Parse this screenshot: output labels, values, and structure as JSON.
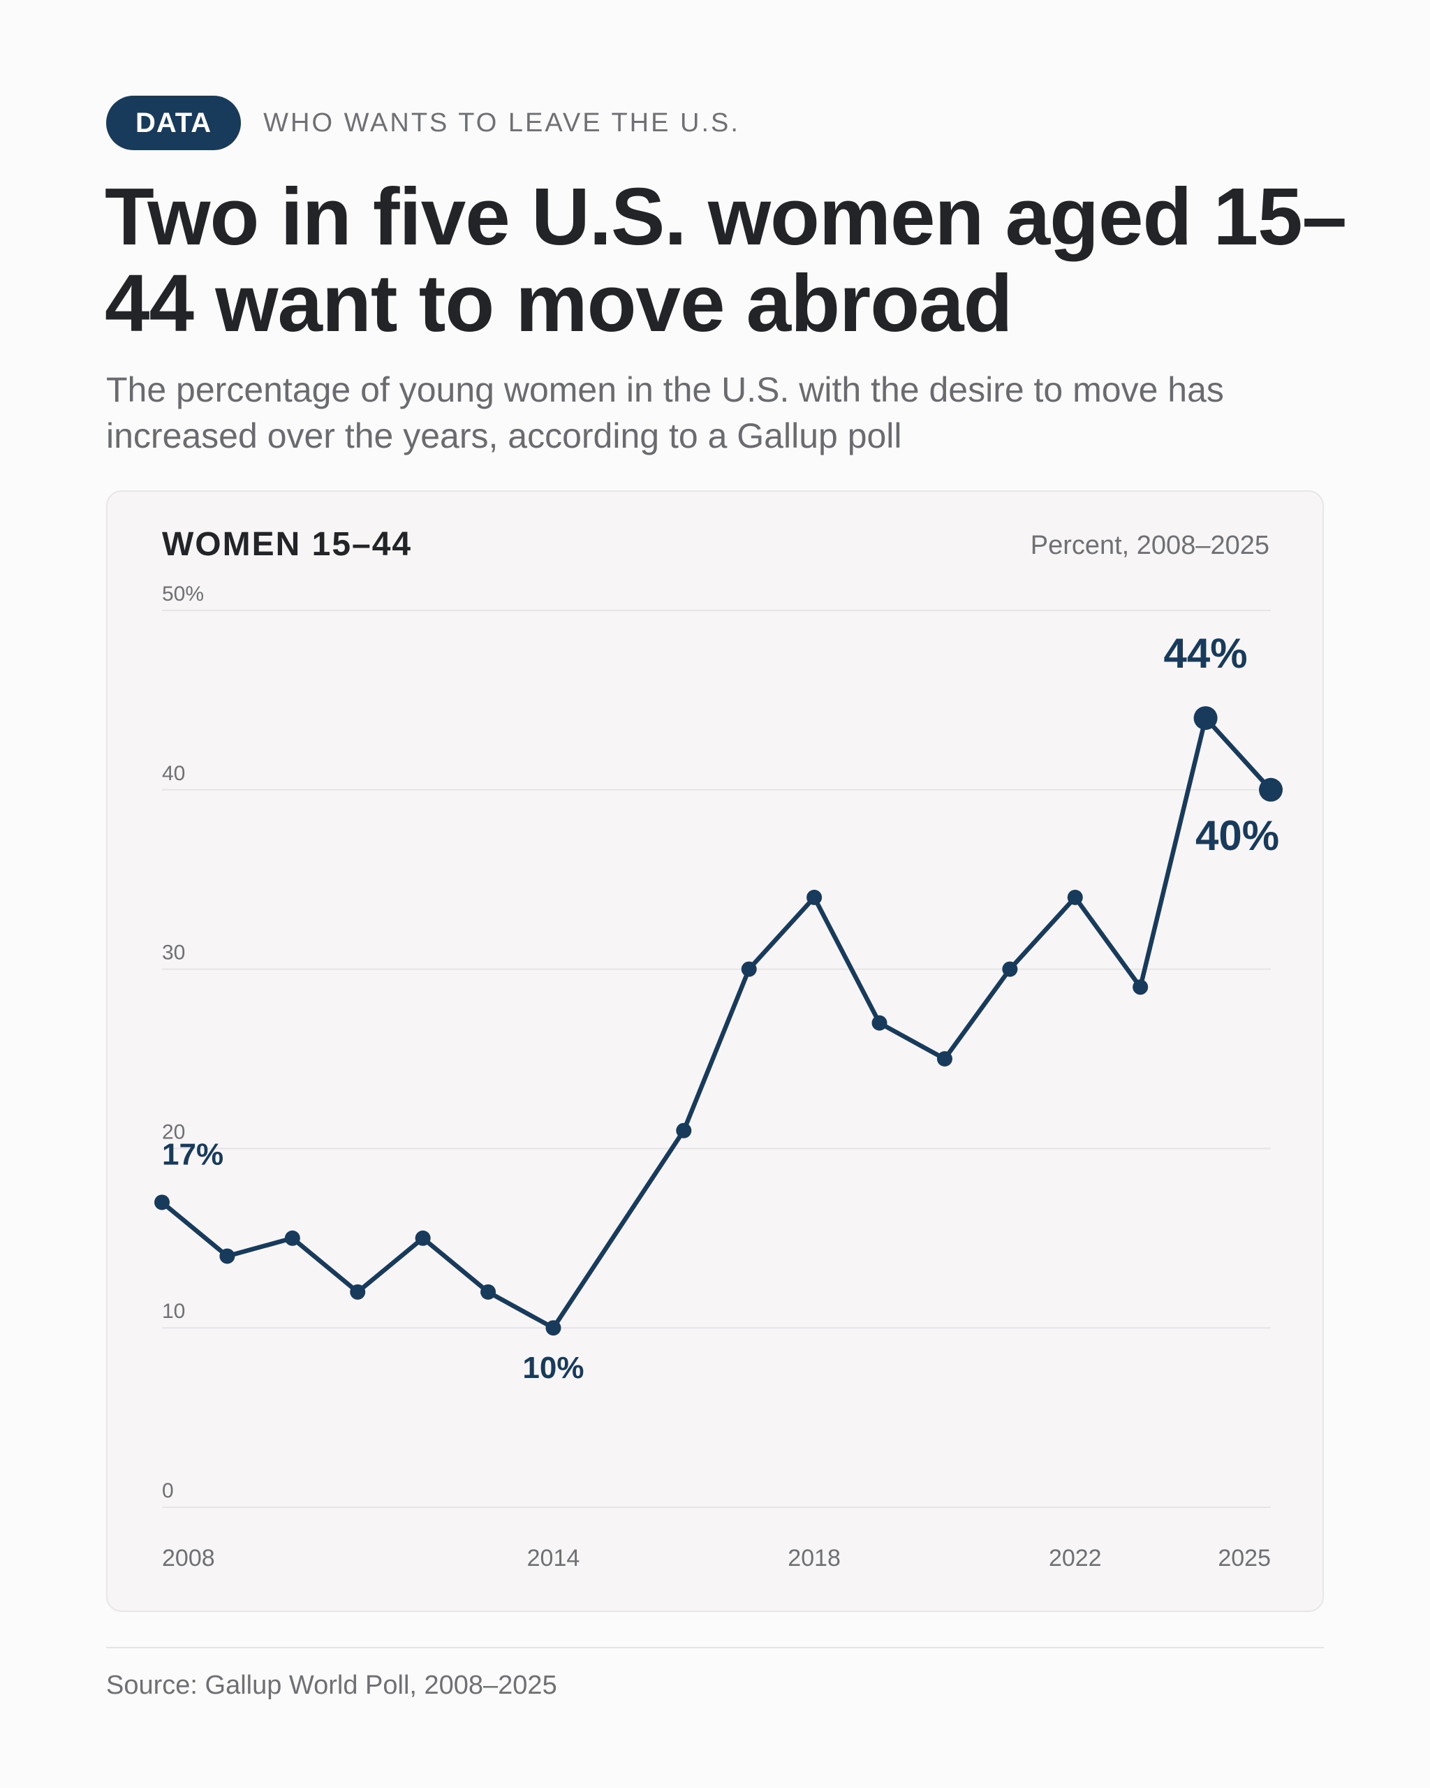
{
  "header": {
    "badge": "DATA",
    "kicker": "WHO WANTS TO LEAVE THE U.S.",
    "title": "Two in five U.S. women aged 15–44 want to move abroad",
    "subtitle": "The percentage of young women in the U.S. with the desire to move has increased over the years, according to a Gallup poll"
  },
  "card": {
    "title": "WOMEN 15–44",
    "unit": "Percent, 2008–2025"
  },
  "footer": {
    "source": "Source: Gallup World Poll, 2008–2025"
  },
  "colors": {
    "line": "#183b5b",
    "grid": "#e6e4e5",
    "tick": "#6f7074"
  },
  "chart_data": {
    "type": "line",
    "title": "WOMEN 15–44",
    "subtitle": "Percent, 2008–2025",
    "x": [
      2008,
      2009,
      2010,
      2011,
      2012,
      2013,
      2014,
      2015,
      2016,
      2017,
      2018,
      2019,
      2020,
      2021,
      2022,
      2023,
      2024,
      2025
    ],
    "series": [
      {
        "values": [
          17,
          14,
          15,
          12,
          15,
          12,
          10,
          15.5,
          21,
          30,
          34,
          27,
          25,
          30,
          34,
          29,
          44,
          40
        ]
      }
    ],
    "xlim": [
      2008,
      2025
    ],
    "ylim": [
      0,
      50
    ],
    "x_ticks": [
      2008,
      2014,
      2018,
      2022,
      2025
    ],
    "x_tick_labels": [
      "2008",
      "2014",
      "2018",
      "2022",
      "2025"
    ],
    "y_ticks": [
      0,
      10,
      20,
      30,
      40,
      50
    ],
    "y_tick_labels": [
      "0",
      "10",
      "20",
      "30",
      "40",
      "50%"
    ],
    "markers": [
      2008,
      2009,
      2010,
      2011,
      2012,
      2013,
      2014,
      2016,
      2017,
      2018,
      2019,
      2020,
      2021,
      2022,
      2023,
      2024,
      2025
    ],
    "highlight_points": [
      2024,
      2025
    ],
    "annotations": [
      {
        "x": 2008,
        "y": 17,
        "text": "17%",
        "size": "small",
        "position": "above"
      },
      {
        "x": 2014,
        "y": 10,
        "text": "10%",
        "size": "small",
        "position": "below"
      },
      {
        "x": 2024,
        "y": 44,
        "text": "44%",
        "size": "large",
        "position": "above"
      },
      {
        "x": 2025,
        "y": 40,
        "text": "40%",
        "size": "large",
        "position": "below-left"
      }
    ],
    "grid": true,
    "legend": "none"
  }
}
